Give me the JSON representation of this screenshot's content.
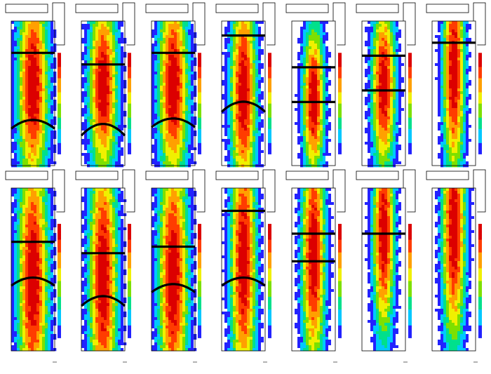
{
  "figure": {
    "grid": "2x7",
    "colormap": "rainbow"
  },
  "footer_text": "",
  "chart_data": [
    {
      "type": "heatmap",
      "row": 1,
      "col": 1,
      "overlay_curves": [
        {
          "kind": "flat",
          "y": 0.78
        },
        {
          "kind": "arch",
          "y": 0.28,
          "amp": 0.06
        }
      ],
      "blob": {
        "center_y": 0.55,
        "spread": 0.35,
        "half_width": 0.45
      }
    },
    {
      "type": "heatmap",
      "row": 1,
      "col": 2,
      "overlay_curves": [
        {
          "kind": "flat",
          "y": 0.7
        },
        {
          "kind": "arch",
          "y": 0.24,
          "amp": 0.08
        }
      ],
      "blob": {
        "center_y": 0.55,
        "spread": 0.3,
        "half_width": 0.42
      }
    },
    {
      "type": "heatmap",
      "row": 1,
      "col": 3,
      "overlay_curves": [
        {
          "kind": "flat",
          "y": 0.78
        },
        {
          "kind": "arch",
          "y": 0.29,
          "amp": 0.06
        }
      ],
      "blob": {
        "center_y": 0.55,
        "spread": 0.33,
        "half_width": 0.44
      }
    },
    {
      "type": "heatmap",
      "row": 1,
      "col": 4,
      "overlay_curves": [
        {
          "kind": "flat",
          "y": 0.9
        },
        {
          "kind": "arch",
          "y": 0.4,
          "amp": 0.07
        }
      ],
      "blob": {
        "center_y": 0.5,
        "spread": 0.35,
        "half_width": 0.38
      }
    },
    {
      "type": "heatmap",
      "row": 1,
      "col": 5,
      "overlay_curves": [
        {
          "kind": "flat",
          "y": 0.68
        },
        {
          "kind": "flat",
          "y": 0.44
        }
      ],
      "blob": {
        "center_y": 0.45,
        "spread": 0.25,
        "half_width": 0.32
      }
    },
    {
      "type": "heatmap",
      "row": 1,
      "col": 6,
      "overlay_curves": [
        {
          "kind": "flat",
          "y": 0.76
        },
        {
          "kind": "flat",
          "y": 0.52
        }
      ],
      "blob": {
        "center_y": 0.55,
        "spread": 0.28,
        "half_width": 0.35
      }
    },
    {
      "type": "heatmap",
      "row": 1,
      "col": 7,
      "overlay_curves": [
        {
          "kind": "flat",
          "y": 0.85
        }
      ],
      "blob": {
        "center_y": 0.65,
        "spread": 0.35,
        "half_width": 0.32
      }
    },
    {
      "type": "heatmap",
      "row": 2,
      "col": 1,
      "overlay_curves": [
        {
          "kind": "flat",
          "y": 0.67
        },
        {
          "kind": "arch",
          "y": 0.42,
          "amp": 0.05
        }
      ],
      "blob": {
        "center_y": 0.45,
        "spread": 0.4,
        "half_width": 0.45
      }
    },
    {
      "type": "heatmap",
      "row": 2,
      "col": 2,
      "overlay_curves": [
        {
          "kind": "flat",
          "y": 0.6
        },
        {
          "kind": "arch",
          "y": 0.3,
          "amp": 0.06
        }
      ],
      "blob": {
        "center_y": 0.45,
        "spread": 0.4,
        "half_width": 0.42
      }
    },
    {
      "type": "heatmap",
      "row": 2,
      "col": 3,
      "overlay_curves": [
        {
          "kind": "flat",
          "y": 0.64
        },
        {
          "kind": "arch",
          "y": 0.38,
          "amp": 0.05
        }
      ],
      "blob": {
        "center_y": 0.45,
        "spread": 0.4,
        "half_width": 0.44
      }
    },
    {
      "type": "heatmap",
      "row": 2,
      "col": 4,
      "overlay_curves": [
        {
          "kind": "flat",
          "y": 0.86
        },
        {
          "kind": "arch",
          "y": 0.42,
          "amp": 0.05
        }
      ],
      "blob": {
        "center_y": 0.55,
        "spread": 0.4,
        "half_width": 0.38
      }
    },
    {
      "type": "heatmap",
      "row": 2,
      "col": 5,
      "overlay_curves": [
        {
          "kind": "flat",
          "y": 0.72
        },
        {
          "kind": "flat",
          "y": 0.55
        }
      ],
      "blob": {
        "center_y": 0.6,
        "spread": 0.35,
        "half_width": 0.35
      }
    },
    {
      "type": "heatmap",
      "row": 2,
      "col": 6,
      "overlay_curves": [
        {
          "kind": "flat",
          "y": 0.72
        }
      ],
      "blob": {
        "center_y": 0.72,
        "spread": 0.3,
        "half_width": 0.32
      }
    },
    {
      "type": "heatmap",
      "row": 2,
      "col": 7,
      "overlay_curves": [],
      "blob": {
        "center_y": 0.75,
        "spread": 0.35,
        "half_width": 0.35
      }
    }
  ]
}
